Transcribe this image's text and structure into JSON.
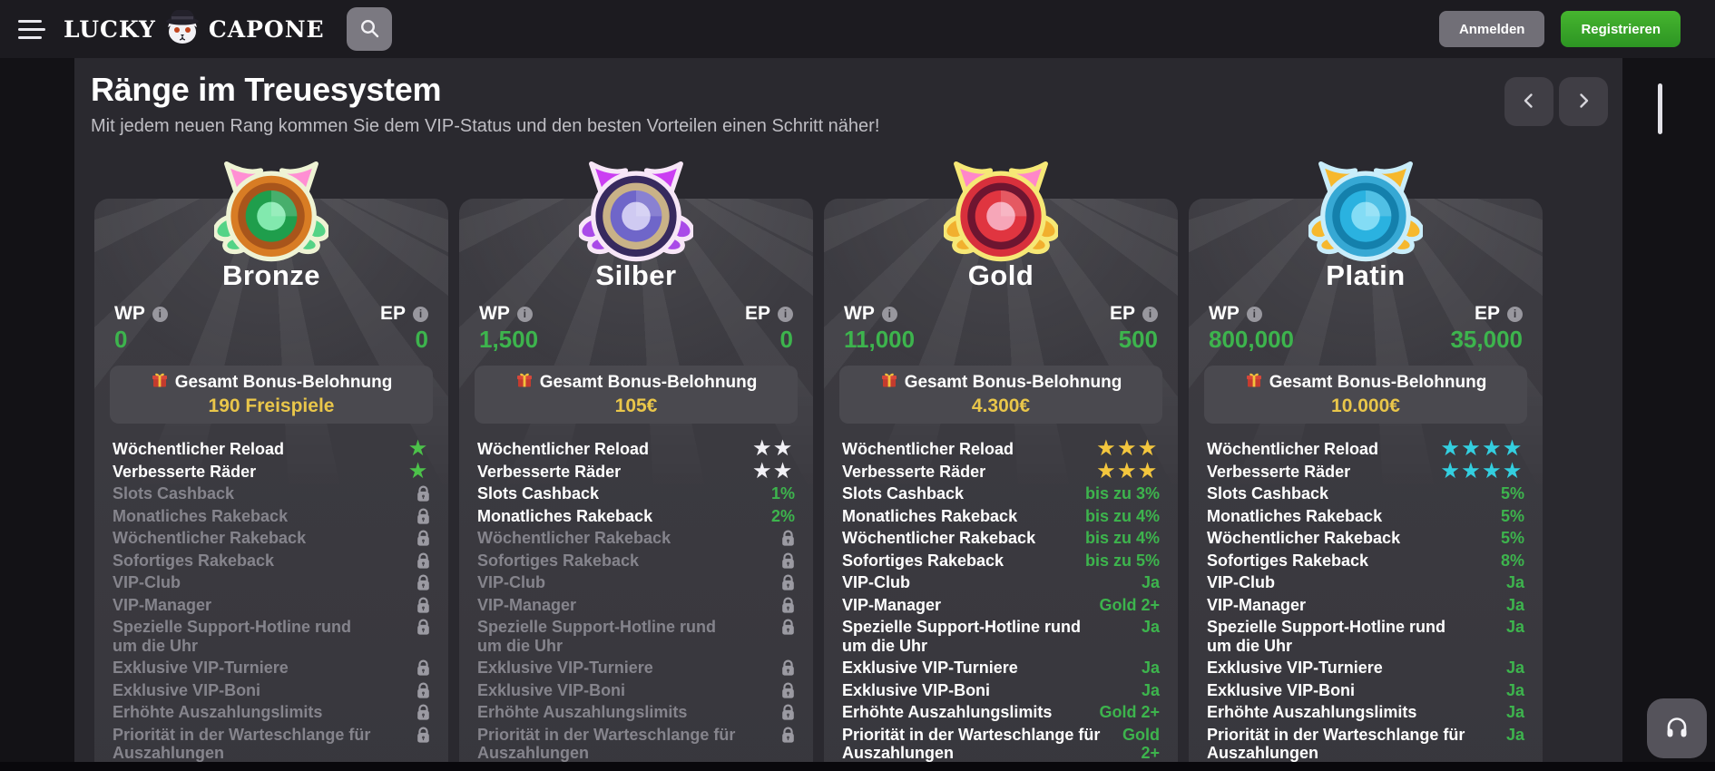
{
  "colors": {
    "accent_green": "#3db44d",
    "bonus_gold": "#e9c64a",
    "locked_gray": "#85848c",
    "card_bg": "#3a393f"
  },
  "header": {
    "brand_first": "LUCKY",
    "brand_second": "CAPONE",
    "login_label": "Anmelden",
    "register_label": "Registrieren",
    "menu_icon": "hamburger-menu-icon",
    "search_icon": "search-icon",
    "mascot_icon": "capone-cat-logo-icon"
  },
  "section": {
    "title": "Ränge im Treuesystem",
    "subtitle": "Mit jedem neuen Rang kommen Sie dem VIP-Status und den besten Vorteilen einen Schritt näher!"
  },
  "points_labels": {
    "wp": "WP",
    "ep": "EP"
  },
  "bonus_box_title": "Gesamt Bonus-Belohnung",
  "feature_labels": [
    "Wöchentlicher Reload",
    "Verbesserte Räder",
    "Slots Cashback",
    "Monatliches Rakeback",
    "Wöchentlicher Rakeback",
    "Sofortiges Rakeback",
    "VIP-Club",
    "VIP-Manager",
    "Spezielle Support-Hotline rund um die Uhr",
    "Exklusive VIP-Turniere",
    "Exklusive VIP-Boni",
    "Erhöhte Auszahlungslimits",
    "Priorität in der Warteschlange für Auszahlungen"
  ],
  "tiers": [
    {
      "name": "Bronze",
      "wp": "0",
      "ep": "0",
      "bonus_value": "190 Freispiele",
      "star_count": 1,
      "star_color": "#4cc24a",
      "badge": {
        "icon": "bronze-cat-badge-icon",
        "outline": "#eef3d4",
        "ring": "#d87c24",
        "ringDark": "#a8551b",
        "face": "#1f9e4c",
        "center": "#82e9ae",
        "ear": "#ff8fd3",
        "wing": "#54d386"
      },
      "features": [
        {
          "type": "stars"
        },
        {
          "type": "stars"
        },
        {
          "type": "lock"
        },
        {
          "type": "lock"
        },
        {
          "type": "lock"
        },
        {
          "type": "lock"
        },
        {
          "type": "lock"
        },
        {
          "type": "lock"
        },
        {
          "type": "lock"
        },
        {
          "type": "lock"
        },
        {
          "type": "lock"
        },
        {
          "type": "lock"
        },
        {
          "type": "lock"
        }
      ]
    },
    {
      "name": "Silber",
      "wp": "1,500",
      "ep": "0",
      "bonus_value": "105€",
      "star_count": 2,
      "star_color": "#f2f1f6",
      "badge": {
        "icon": "silver-cat-badge-icon",
        "outline": "#f7e6f7",
        "ring": "#372a5e",
        "ringDark": "#c9b287",
        "face": "#6f66c9",
        "center": "#cfcaf2",
        "ear": "#cb3ef2",
        "wing": "#a94ae8"
      },
      "features": [
        {
          "type": "stars"
        },
        {
          "type": "stars"
        },
        {
          "type": "text",
          "text": "1%"
        },
        {
          "type": "text",
          "text": "2%"
        },
        {
          "type": "lock"
        },
        {
          "type": "lock"
        },
        {
          "type": "lock"
        },
        {
          "type": "lock"
        },
        {
          "type": "lock"
        },
        {
          "type": "lock"
        },
        {
          "type": "lock"
        },
        {
          "type": "lock"
        },
        {
          "type": "lock"
        }
      ]
    },
    {
      "name": "Gold",
      "wp": "11,000",
      "ep": "500",
      "bonus_value": "4.300€",
      "star_count": 3,
      "star_color": "#f3c63e",
      "badge": {
        "icon": "gold-cat-badge-icon",
        "outline": "#f6e876",
        "ring": "#d8303c",
        "ringDark": "#6e1530",
        "face": "#e03540",
        "center": "#f6a6b8",
        "ear": "#ff87c9",
        "wing": "#f1b02e"
      },
      "features": [
        {
          "type": "stars"
        },
        {
          "type": "stars"
        },
        {
          "type": "text",
          "text": "bis zu 3%"
        },
        {
          "type": "text",
          "text": "bis zu 4%"
        },
        {
          "type": "text",
          "text": "bis zu 4%"
        },
        {
          "type": "text",
          "text": "bis zu 5%"
        },
        {
          "type": "text",
          "text": "Ja"
        },
        {
          "type": "text",
          "text": "Gold 2+"
        },
        {
          "type": "text",
          "text": "Ja"
        },
        {
          "type": "text",
          "text": "Ja"
        },
        {
          "type": "text",
          "text": "Ja"
        },
        {
          "type": "text",
          "text": "Gold 2+"
        },
        {
          "type": "text",
          "text": "Gold 2+"
        }
      ]
    },
    {
      "name": "Platin",
      "wp": "800,000",
      "ep": "35,000",
      "bonus_value": "10.000€",
      "star_count": 4,
      "star_color": "#33cfe0",
      "badge": {
        "icon": "platinum-paw-badge-icon",
        "outline": "#c9edfa",
        "ring": "#36a8d4",
        "ringDark": "#1480ac",
        "face": "#2ab2e0",
        "center": "#83dcf5",
        "ear": "#f6b82d",
        "wing": "#f6b82d"
      },
      "features": [
        {
          "type": "stars"
        },
        {
          "type": "stars"
        },
        {
          "type": "text",
          "text": "5%"
        },
        {
          "type": "text",
          "text": "5%"
        },
        {
          "type": "text",
          "text": "5%"
        },
        {
          "type": "text",
          "text": "8%"
        },
        {
          "type": "text",
          "text": "Ja"
        },
        {
          "type": "text",
          "text": "Ja"
        },
        {
          "type": "text",
          "text": "Ja"
        },
        {
          "type": "text",
          "text": "Ja"
        },
        {
          "type": "text",
          "text": "Ja"
        },
        {
          "type": "text",
          "text": "Ja"
        },
        {
          "type": "text",
          "text": "Ja"
        }
      ]
    }
  ],
  "support": {
    "icon": "headphones-icon"
  }
}
